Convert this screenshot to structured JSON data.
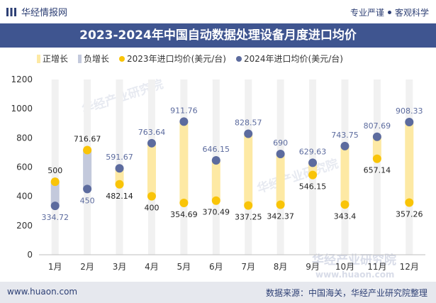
{
  "header": {
    "brand": "华经情报网",
    "slogan_left": "专业严谨",
    "slogan_right": "客观科学",
    "title": "2023-2024年中国自动数据处理设备月度进口均价"
  },
  "legend": {
    "positive": "正增长",
    "negative": "负增长",
    "s2023": "2023年进口均价(美元/台)",
    "s2024": "2024年进口均价(美元/台)"
  },
  "colors": {
    "positive": "#fde9a4",
    "negative": "#c3c9dc",
    "s2023": "#f9c407",
    "s2024": "#5c6b9e",
    "guide": "#f1f1f1"
  },
  "footer": {
    "website": "www.huaon.com",
    "source": "数据来源：中国海关，华经产业研究院整理"
  },
  "chart_data": {
    "type": "line",
    "title": "2023-2024年中国自动数据处理设备月度进口均价",
    "categories": [
      "1月",
      "2月",
      "3月",
      "4月",
      "5月",
      "6月",
      "7月",
      "8月",
      "9月",
      "10月",
      "11月",
      "12月"
    ],
    "series": [
      {
        "name": "2023年进口均价(美元/台)",
        "values": [
          500,
          716.67,
          482.14,
          400,
          354.69,
          370.49,
          337.25,
          342.37,
          546.15,
          343.4,
          657.14,
          357.26
        ]
      },
      {
        "name": "2024年进口均价(美元/台)",
        "values": [
          334.72,
          450,
          591.67,
          763.64,
          911.76,
          646.15,
          828.57,
          690,
          629.63,
          743.75,
          807.69,
          908.33
        ]
      }
    ],
    "labels_2023": [
      "500",
      "716.67",
      "482.14",
      "400",
      "354.69",
      "370.49",
      "337.25",
      "342.37",
      "546.15",
      "343.4",
      "657.14",
      "357.26"
    ],
    "labels_2024": [
      "334.72",
      "450",
      "591.67",
      "763.64",
      "911.76",
      "646.15",
      "828.57",
      "690",
      "629.63",
      "743.75",
      "807.69",
      "908.33"
    ],
    "yticks": [
      "0",
      "200",
      "400",
      "600",
      "800",
      "1000",
      "1200"
    ],
    "ylim": [
      0,
      1200
    ],
    "watermarks": [
      "华经产业研究院",
      "华经产业研究院",
      "华经产业研究院"
    ],
    "watermark_url": "www.huaon.com"
  }
}
